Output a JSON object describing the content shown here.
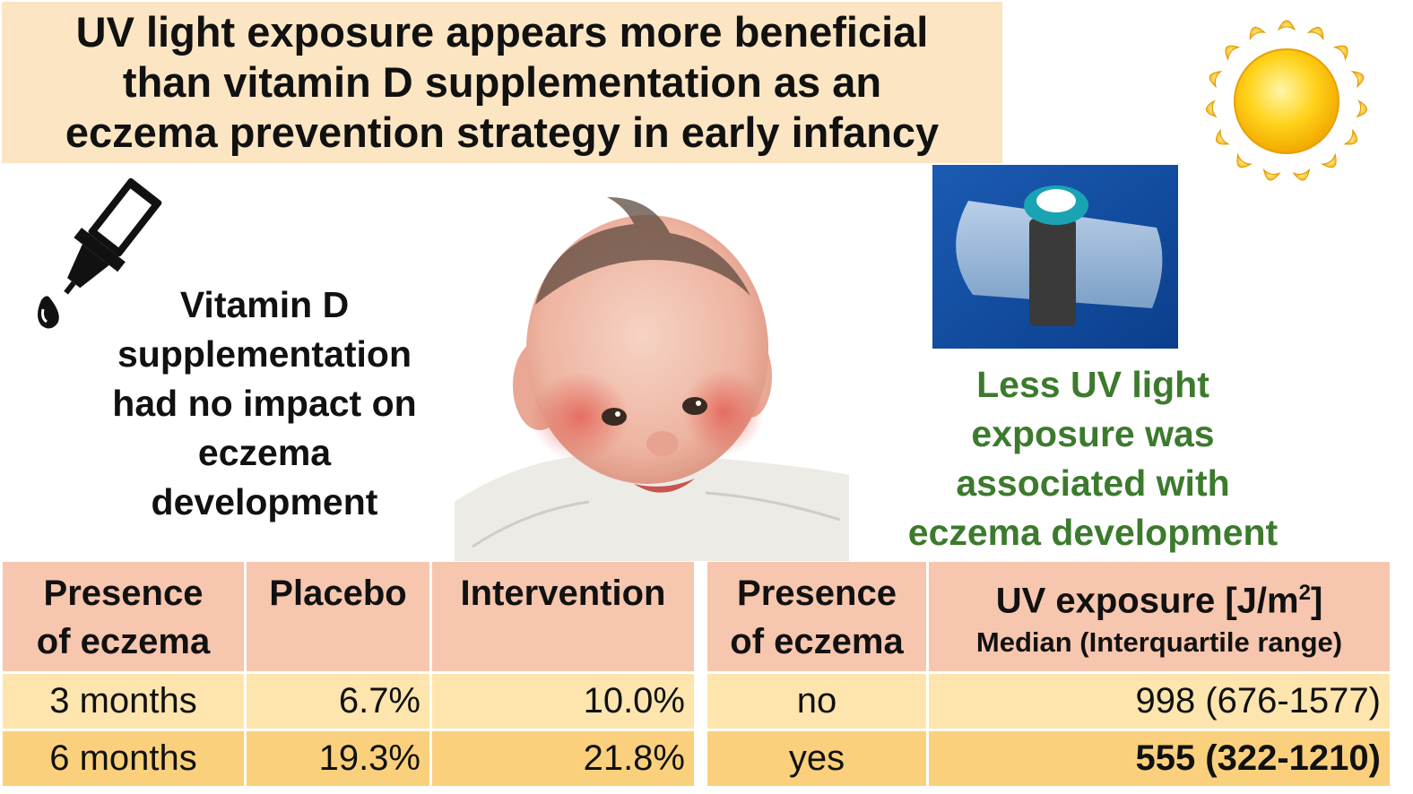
{
  "title": {
    "lines": [
      "UV light exposure appears more beneficial",
      "than vitamin D supplementation as an",
      "eczema prevention strategy in early infancy"
    ]
  },
  "vitamin_d_text": [
    "Vitamin D",
    "supplementation",
    "had no impact on",
    "eczema",
    "development"
  ],
  "uv_text": [
    "Less UV light",
    "exposure was",
    "associated with",
    "eczema development"
  ],
  "left_table": {
    "headers": [
      "Presence of eczema",
      "Placebo",
      "Intervention"
    ],
    "header_lines": [
      [
        "Presence",
        "of eczema"
      ],
      [
        "Placebo"
      ],
      [
        "Intervention"
      ]
    ],
    "rows": [
      [
        "3 months",
        "6.7%",
        "10.0%"
      ],
      [
        "6 months",
        "19.3%",
        "21.8%"
      ]
    ]
  },
  "right_table": {
    "header_lines": [
      [
        "Presence",
        "of eczema"
      ]
    ],
    "uv_header": "UV exposure [J/m",
    "uv_header_sup": "2",
    "uv_header_close": "]",
    "uv_subheader": "Median (Interquartile range)",
    "rows": [
      [
        "no",
        "998 (676-1577)"
      ],
      [
        "yes",
        "555 (322-1210)"
      ]
    ]
  },
  "colors": {
    "title_bg": "#fbe5c3",
    "header_bg": "#f7c6ae",
    "row1_bg": "#fde5ad",
    "row2_bg": "#fbd07c",
    "green_text": "#3c7a2d"
  },
  "icons": [
    "sun-icon",
    "dropper-icon"
  ]
}
